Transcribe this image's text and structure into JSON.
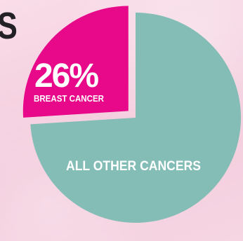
{
  "title_fragment": "S",
  "chart_data": {
    "type": "pie",
    "slices": [
      {
        "label": "BREAST CANCER",
        "value": 26,
        "display": "26%",
        "color": "#e7098a",
        "exploded": true
      },
      {
        "label": "ALL OTHER CANCERS",
        "value": 74,
        "color": "#83bdb5",
        "exploded": false
      }
    ],
    "title": "",
    "legend": "none"
  },
  "colors": {
    "background": "#f6d3e1",
    "title_text": "#232026",
    "label_text": "#ffffff"
  }
}
